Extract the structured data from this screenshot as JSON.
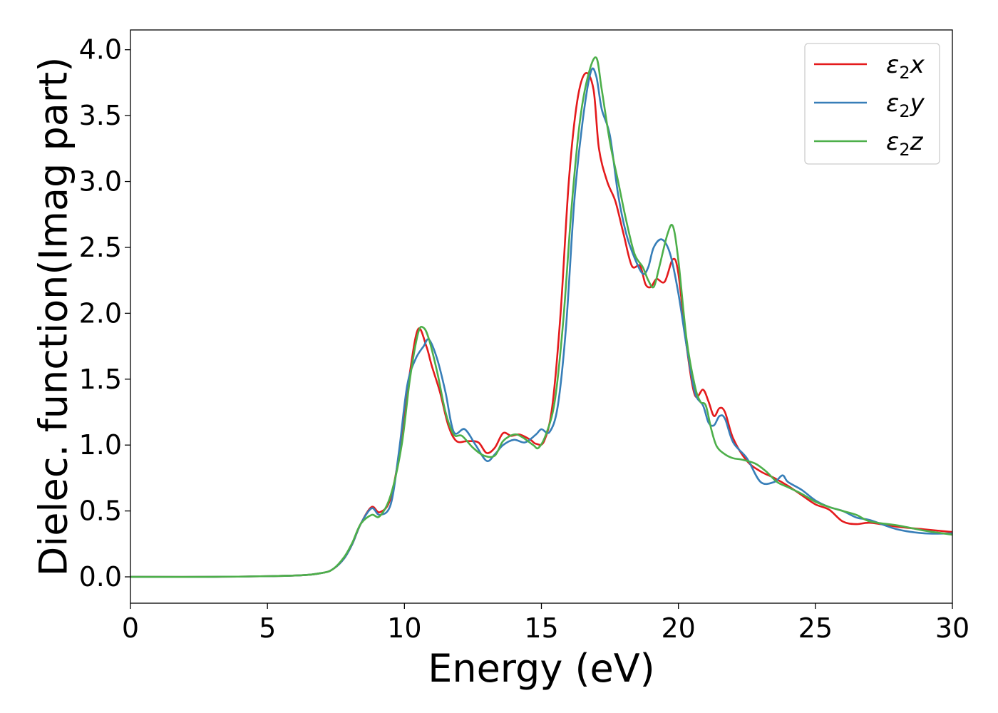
{
  "chart_data": {
    "type": "line",
    "title": "",
    "xlabel": "Energy (eV)",
    "ylabel": "Dielec. function(Imag part)",
    "xlim": [
      0,
      30
    ],
    "ylim": [
      -0.2,
      4.15
    ],
    "xticks": [
      0,
      5,
      10,
      15,
      20,
      25,
      30
    ],
    "xtick_labels": [
      "0",
      "5",
      "10",
      "15",
      "20",
      "25",
      "30"
    ],
    "yticks": [
      0.0,
      0.5,
      1.0,
      1.5,
      2.0,
      2.5,
      3.0,
      3.5,
      4.0
    ],
    "ytick_labels": [
      "0.0",
      "0.5",
      "1.0",
      "1.5",
      "2.0",
      "2.5",
      "3.0",
      "3.5",
      "4.0"
    ],
    "grid": false,
    "legend_position": "top-right",
    "series": [
      {
        "name": "ε2x",
        "color": "#e41a1c",
        "x": [
          0,
          3,
          6,
          7,
          7.4,
          7.8,
          8.1,
          8.4,
          8.8,
          9.1,
          9.5,
          9.9,
          10.2,
          10.5,
          10.8,
          11.0,
          11.3,
          11.6,
          11.9,
          12.3,
          12.7,
          13.0,
          13.3,
          13.6,
          13.9,
          14.2,
          14.6,
          14.8,
          15.1,
          15.4,
          15.7,
          16.0,
          16.3,
          16.6,
          16.9,
          17.1,
          17.4,
          17.7,
          18.0,
          18.3,
          18.6,
          18.8,
          19.0,
          19.2,
          19.5,
          19.8,
          20.0,
          20.3,
          20.6,
          20.9,
          21.1,
          21.3,
          21.5,
          21.7,
          22.0,
          22.5,
          23.0,
          23.5,
          24.0,
          24.5,
          25.0,
          25.5,
          26.0,
          26.5,
          27.0,
          28.0,
          29.0,
          30.0
        ],
        "values": [
          0.0,
          0.0,
          0.01,
          0.03,
          0.06,
          0.14,
          0.25,
          0.4,
          0.53,
          0.49,
          0.6,
          1.05,
          1.55,
          1.88,
          1.75,
          1.6,
          1.4,
          1.15,
          1.03,
          1.03,
          1.02,
          0.94,
          0.98,
          1.09,
          1.07,
          1.08,
          1.04,
          1.01,
          1.03,
          1.3,
          2.0,
          3.0,
          3.6,
          3.82,
          3.7,
          3.25,
          3.0,
          2.85,
          2.6,
          2.36,
          2.36,
          2.22,
          2.2,
          2.26,
          2.24,
          2.41,
          2.3,
          1.75,
          1.38,
          1.42,
          1.33,
          1.22,
          1.28,
          1.25,
          1.05,
          0.88,
          0.8,
          0.75,
          0.69,
          0.62,
          0.55,
          0.51,
          0.42,
          0.4,
          0.41,
          0.38,
          0.36,
          0.34
        ]
      },
      {
        "name": "ε2y",
        "color": "#377eb8",
        "x": [
          0,
          3,
          6,
          7,
          7.4,
          7.8,
          8.1,
          8.4,
          8.8,
          9.1,
          9.5,
          9.8,
          10.1,
          10.4,
          10.7,
          10.9,
          11.2,
          11.5,
          11.8,
          12.2,
          12.6,
          13.0,
          13.3,
          13.6,
          14.0,
          14.4,
          14.8,
          15.0,
          15.3,
          15.6,
          15.9,
          16.2,
          16.5,
          16.8,
          17.0,
          17.2,
          17.5,
          17.8,
          18.1,
          18.4,
          18.7,
          18.9,
          19.1,
          19.4,
          19.7,
          20.0,
          20.3,
          20.6,
          20.9,
          21.1,
          21.3,
          21.5,
          21.7,
          22.0,
          22.5,
          23.0,
          23.5,
          23.8,
          24.0,
          24.5,
          25.0,
          25.5,
          26.0,
          26.5,
          27.0,
          28.0,
          29.0,
          30.0
        ],
        "values": [
          0.0,
          0.0,
          0.01,
          0.03,
          0.06,
          0.14,
          0.25,
          0.4,
          0.52,
          0.47,
          0.55,
          0.95,
          1.45,
          1.65,
          1.75,
          1.8,
          1.65,
          1.4,
          1.1,
          1.12,
          1.0,
          0.88,
          0.93,
          1.0,
          1.04,
          1.02,
          1.08,
          1.12,
          1.1,
          1.3,
          1.9,
          2.85,
          3.45,
          3.83,
          3.8,
          3.55,
          3.35,
          2.9,
          2.6,
          2.42,
          2.3,
          2.35,
          2.5,
          2.56,
          2.45,
          2.15,
          1.75,
          1.4,
          1.3,
          1.17,
          1.15,
          1.22,
          1.2,
          1.02,
          0.9,
          0.72,
          0.72,
          0.77,
          0.72,
          0.66,
          0.58,
          0.53,
          0.5,
          0.45,
          0.43,
          0.36,
          0.33,
          0.33
        ]
      },
      {
        "name": "ε2z",
        "color": "#4daf4a",
        "x": [
          0,
          3,
          6,
          7,
          7.4,
          7.8,
          8.1,
          8.4,
          8.8,
          9.1,
          9.5,
          9.9,
          10.2,
          10.5,
          10.7,
          10.9,
          11.2,
          11.5,
          11.8,
          12.1,
          12.5,
          12.9,
          13.3,
          13.6,
          14.0,
          14.3,
          14.7,
          14.9,
          15.2,
          15.5,
          15.8,
          16.1,
          16.4,
          16.7,
          17.0,
          17.2,
          17.5,
          17.8,
          18.1,
          18.4,
          18.7,
          18.9,
          19.1,
          19.3,
          19.6,
          19.8,
          20.0,
          20.3,
          20.6,
          20.8,
          21.0,
          21.2,
          21.4,
          21.7,
          22.0,
          22.3,
          22.8,
          23.2,
          23.6,
          24.0,
          24.5,
          25.0,
          25.5,
          26.0,
          26.5,
          27.0,
          28.0,
          29.0,
          30.0
        ],
        "values": [
          0.0,
          0.0,
          0.01,
          0.03,
          0.06,
          0.15,
          0.26,
          0.4,
          0.47,
          0.46,
          0.62,
          1.0,
          1.5,
          1.85,
          1.89,
          1.8,
          1.55,
          1.25,
          1.08,
          1.07,
          0.98,
          0.92,
          0.92,
          1.03,
          1.08,
          1.06,
          1.0,
          0.98,
          1.1,
          1.35,
          1.95,
          2.8,
          3.45,
          3.8,
          3.94,
          3.7,
          3.3,
          3.0,
          2.7,
          2.45,
          2.35,
          2.25,
          2.2,
          2.35,
          2.6,
          2.66,
          2.4,
          1.8,
          1.45,
          1.33,
          1.3,
          1.12,
          0.99,
          0.93,
          0.9,
          0.89,
          0.86,
          0.8,
          0.72,
          0.68,
          0.63,
          0.57,
          0.53,
          0.5,
          0.47,
          0.42,
          0.39,
          0.35,
          0.32
        ]
      }
    ]
  }
}
